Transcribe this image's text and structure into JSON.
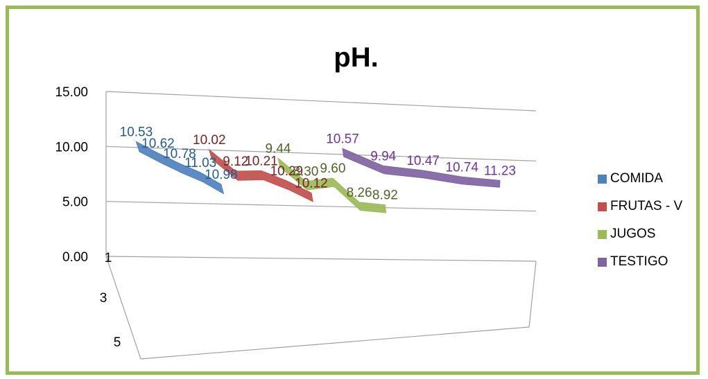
{
  "chart_data": {
    "type": "3d-line",
    "title": "pH.",
    "ylim": [
      0,
      15
    ],
    "y_ticks": [
      "0.00",
      "5.00",
      "10.00",
      "15.00"
    ],
    "depth_ticks": [
      "1",
      "3",
      "5"
    ],
    "legend_position": "right",
    "series": [
      {
        "name": "COMIDA",
        "color": "#4f81bd",
        "label_color": "#1f5a96",
        "values": [
          10.53,
          10.62,
          10.78,
          11.03,
          10.98
        ]
      },
      {
        "name": "FRUTAS - V",
        "color": "#c0504d",
        "label_color": "#7a2020",
        "values": [
          10.02,
          9.12,
          10.21,
          10.29,
          10.12
        ]
      },
      {
        "name": "JUGOS",
        "color": "#9bbb59",
        "label_color": "#4f6228",
        "values": [
          9.44,
          8.3,
          9.6,
          8.26,
          8.92
        ]
      },
      {
        "name": "TESTIGO",
        "color": "#8064a2",
        "label_color": "#7030a0",
        "values": [
          10.57,
          9.94,
          10.47,
          10.74,
          11.23
        ]
      }
    ]
  }
}
